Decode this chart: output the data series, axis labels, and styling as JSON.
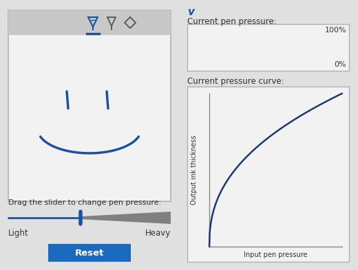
{
  "bg_color": "#e0e0e0",
  "box_bg": "#f2f2f2",
  "box_border": "#b0b0b0",
  "toolbar_bg": "#c8c8c8",
  "blue_color": "#1a52a0",
  "dark_blue": "#1a3a6e",
  "slider_gray": "#808080",
  "button_blue": "#1a6abf",
  "button_text": "Reset",
  "text_color": "#333333",
  "label_drag": "Drag the slider to change pen pressure:",
  "label_light": "Light",
  "label_heavy": "Heavy",
  "label_current_pressure": "Current pen pressure:",
  "label_100": "100%",
  "label_0": "0%",
  "label_curve": "Current pressure curve:",
  "label_x_axis": "Input pen pressure",
  "label_y_axis": "Output ink thickness"
}
